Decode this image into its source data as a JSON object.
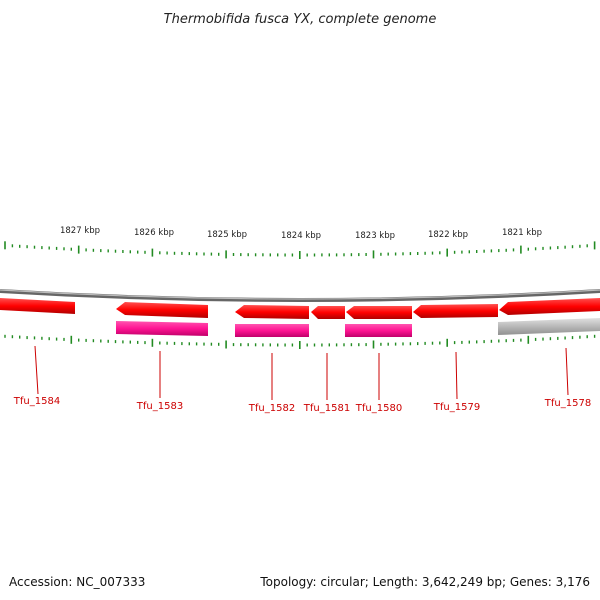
{
  "title": "Thermobifida fusca YX, complete genome",
  "accession": "Accession: NC_007333",
  "topology": "Topology: circular; Length: 3,642,249 bp; Genes: 3,176",
  "colors": {
    "gene_red": "#ff0000",
    "gene_pink": "#ff1493",
    "backbone": "#888888",
    "tick": "#228b22",
    "label": "#cc0000",
    "gray_feature": "#b0b0b0"
  },
  "scale": {
    "labels": [
      "1827 kbp",
      "1826 kbp",
      "1825 kbp",
      "1824 kbp",
      "1823 kbp",
      "1822 kbp",
      "1821 kbp"
    ]
  },
  "genes": [
    {
      "id": "Tfu_1584",
      "label": "Tfu_1584"
    },
    {
      "id": "Tfu_1583",
      "label": "Tfu_1583"
    },
    {
      "id": "Tfu_1582",
      "label": "Tfu_1582"
    },
    {
      "id": "Tfu_1581",
      "label": "Tfu_1581"
    },
    {
      "id": "Tfu_1580",
      "label": "Tfu_1580"
    },
    {
      "id": "Tfu_1579",
      "label": "Tfu_1579"
    },
    {
      "id": "Tfu_1578",
      "label": "Tfu_1578"
    }
  ]
}
